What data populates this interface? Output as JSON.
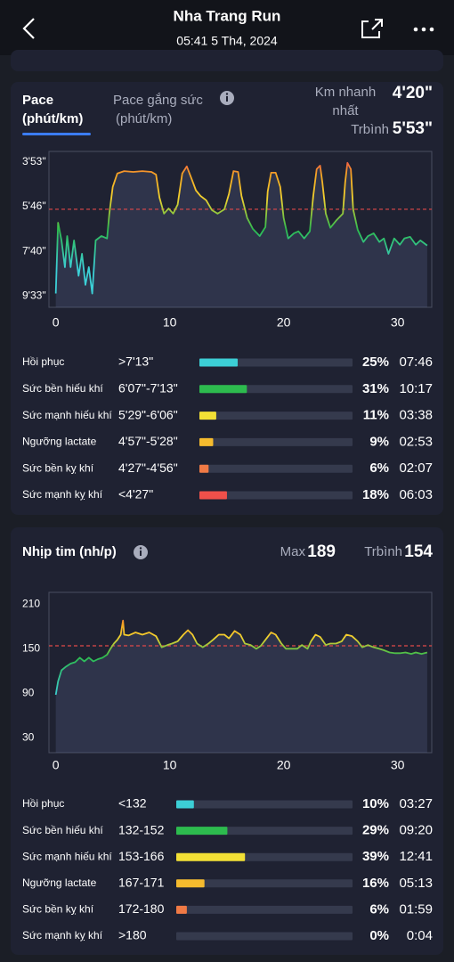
{
  "header": {
    "title": "Nha Trang Run",
    "subtitle": "05:41 5 Th4, 2024"
  },
  "pace_card": {
    "tab_active": {
      "title": "Pace",
      "unit": "(phút/km)"
    },
    "tab_other": {
      "title": "Pace gắng sức",
      "unit": "(phút/km)"
    },
    "fastest_label": [
      "Km nhanh",
      "nhất"
    ],
    "fastest_value": "4'20\"",
    "avg_label": "Trbình",
    "avg_value": "5'53\""
  },
  "hr_card": {
    "title": "Nhịp tim (nh/p)",
    "max_label": "Max",
    "max_value": "189",
    "avg_label": "Trbình",
    "avg_value": "154"
  },
  "chart_data": [
    {
      "type": "line",
      "x": [
        0.0,
        0.2,
        0.5,
        0.8,
        1.0,
        1.3,
        1.6,
        2.0,
        2.3,
        2.6,
        2.9,
        3.2,
        3.5,
        4.0,
        4.5,
        4.7,
        5.0,
        5.4,
        6.0,
        6.8,
        7.6,
        8.4,
        8.8,
        9.1,
        9.5,
        9.9,
        10.3,
        10.7,
        11.1,
        11.5,
        11.9,
        12.3,
        12.7,
        13.2,
        13.7,
        14.2,
        14.8,
        15.2,
        15.6,
        16.0,
        16.3,
        16.8,
        17.3,
        17.9,
        18.4,
        18.6,
        18.9,
        19.3,
        19.7,
        20.0,
        20.4,
        20.9,
        21.3,
        21.8,
        22.3,
        22.6,
        22.9,
        23.2,
        23.4,
        23.7,
        24.1,
        24.6,
        25.2,
        25.4,
        25.6,
        25.9,
        26.1,
        26.5,
        27.0,
        27.4,
        27.9,
        28.4,
        28.8,
        29.2,
        29.7,
        30.2,
        30.6,
        31.1,
        31.6,
        32.0,
        32.6
      ],
      "values": [
        567,
        387,
        432,
        500,
        421,
        500,
        432,
        522,
        466,
        545,
        500,
        567,
        432,
        421,
        427,
        364,
        296,
        262,
        256,
        258,
        256,
        258,
        265,
        323,
        364,
        351,
        364,
        341,
        262,
        244,
        274,
        305,
        319,
        330,
        355,
        364,
        353,
        314,
        256,
        258,
        319,
        375,
        403,
        421,
        398,
        308,
        260,
        260,
        296,
        375,
        427,
        414,
        409,
        427,
        409,
        319,
        251,
        242,
        285,
        364,
        400,
        382,
        364,
        285,
        235,
        251,
        353,
        405,
        436,
        421,
        414,
        436,
        427,
        466,
        427,
        443,
        427,
        423,
        443,
        432,
        445
      ],
      "line_colors": [
        "#f0504a",
        "#f5a623",
        "#f2d22e",
        "#2dbb4e",
        "#3ccfd6"
      ],
      "reference_line": 353,
      "xlim": [
        -0.6,
        33.0
      ],
      "xticks": [
        0,
        10,
        20,
        30
      ],
      "ylim": [
        602,
        206
      ],
      "yticks": [
        {
          "value": 233,
          "label": "3'53\""
        },
        {
          "value": 346,
          "label": "5'46\""
        },
        {
          "value": 460,
          "label": "7'40\""
        },
        {
          "value": 573,
          "label": "9'33\""
        }
      ]
    },
    {
      "type": "line",
      "x": [
        0.0,
        0.2,
        0.5,
        0.9,
        1.3,
        1.7,
        2.1,
        2.5,
        2.9,
        3.3,
        3.7,
        4.1,
        4.5,
        4.8,
        5.1,
        5.4,
        5.7,
        5.9,
        6.0,
        6.4,
        7.0,
        7.6,
        8.2,
        8.8,
        9.3,
        9.8,
        10.2,
        10.7,
        11.2,
        11.6,
        12.0,
        12.4,
        12.9,
        13.4,
        13.8,
        14.3,
        14.8,
        15.2,
        15.7,
        16.2,
        16.6,
        17.1,
        17.6,
        18.0,
        18.5,
        18.9,
        19.3,
        19.8,
        20.2,
        20.7,
        21.2,
        21.6,
        22.1,
        22.4,
        22.8,
        23.2,
        23.7,
        24.1,
        24.6,
        25.1,
        25.5,
        26.0,
        26.5,
        26.9,
        27.4,
        27.9,
        28.4,
        28.8,
        29.3,
        29.8,
        30.2,
        30.7,
        31.2,
        31.6,
        32.1,
        32.6
      ],
      "values": [
        88,
        106,
        121,
        126,
        130,
        132,
        138,
        133,
        138,
        133,
        136,
        138,
        142,
        150,
        157,
        162,
        169,
        188,
        169,
        168,
        172,
        169,
        172,
        167,
        152,
        155,
        157,
        160,
        169,
        175,
        169,
        157,
        152,
        157,
        162,
        169,
        169,
        164,
        174,
        169,
        157,
        155,
        150,
        154,
        164,
        172,
        169,
        157,
        150,
        150,
        150,
        155,
        150,
        160,
        169,
        166,
        155,
        157,
        157,
        160,
        169,
        167,
        160,
        152,
        155,
        152,
        150,
        148,
        145,
        144,
        144,
        145,
        143,
        145,
        143,
        145
      ],
      "line_colors": [
        "#f0504a",
        "#f5a623",
        "#f2d22e",
        "#2dbb4e",
        "#3ccfd6"
      ],
      "reference_line": 154,
      "xlim": [
        -0.6,
        33.0
      ],
      "xticks": [
        0,
        10,
        20,
        30
      ],
      "ylim": [
        10,
        226
      ],
      "yticks": [
        210,
        150,
        90,
        30
      ]
    }
  ],
  "pace_zones": {
    "rows": [
      {
        "name": "Hồi phục",
        "range": ">7'13\"",
        "percent": 25,
        "percent_label": "25%",
        "time": "07:46",
        "color": "#3ccfd6"
      },
      {
        "name": "Sức bền hiếu khí",
        "range": "6'07\"-7'13\"",
        "percent": 31,
        "percent_label": "31%",
        "time": "10:17",
        "color": "#2dbb4e"
      },
      {
        "name": "Sức mạnh hiếu khí",
        "range": "5'29\"-6'06\"",
        "percent": 11,
        "percent_label": "11%",
        "time": "03:38",
        "color": "#f2e035"
      },
      {
        "name": "Ngưỡng lactate",
        "range": "4'57\"-5'28\"",
        "percent": 9,
        "percent_label": "9%",
        "time": "02:53",
        "color": "#f5bb2e"
      },
      {
        "name": "Sức bền kỵ khí",
        "range": "4'27\"-4'56\"",
        "percent": 6,
        "percent_label": "6%",
        "time": "02:07",
        "color": "#f07a45"
      },
      {
        "name": "Sức mạnh kỵ khí",
        "range": "<4'27\"",
        "percent": 18,
        "percent_label": "18%",
        "time": "06:03",
        "color": "#f0504a"
      }
    ]
  },
  "hr_zones": {
    "rows": [
      {
        "name": "Hồi phục",
        "range": "<132",
        "percent": 10,
        "percent_label": "10%",
        "time": "03:27",
        "color": "#3ccfd6"
      },
      {
        "name": "Sức bền hiếu khí",
        "range": "132-152",
        "percent": 29,
        "percent_label": "29%",
        "time": "09:20",
        "color": "#2dbb4e"
      },
      {
        "name": "Sức mạnh hiếu khí",
        "range": "153-166",
        "percent": 39,
        "percent_label": "39%",
        "time": "12:41",
        "color": "#f2e035"
      },
      {
        "name": "Ngưỡng lactate",
        "range": "167-171",
        "percent": 16,
        "percent_label": "16%",
        "time": "05:13",
        "color": "#f5bb2e"
      },
      {
        "name": "Sức bền kỵ khí",
        "range": "172-180",
        "percent": 6,
        "percent_label": "6%",
        "time": "01:59",
        "color": "#f07a45"
      },
      {
        "name": "Sức mạnh kỵ khí",
        "range": ">180",
        "percent": 0,
        "percent_label": "0%",
        "time": "0:04",
        "color": "#f0504a"
      }
    ]
  }
}
